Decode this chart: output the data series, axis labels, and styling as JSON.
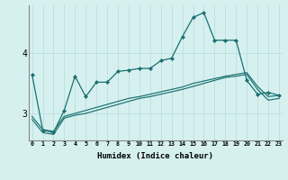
{
  "xlabel": "Humidex (Indice chaleur)",
  "background_color": "#d6f0f0",
  "grid_color": "#c0e0e0",
  "line_color": "#1a7070",
  "x_ticks": [
    0,
    1,
    2,
    3,
    4,
    5,
    6,
    7,
    8,
    9,
    10,
    11,
    12,
    13,
    14,
    15,
    16,
    17,
    18,
    19,
    20,
    21,
    22,
    23
  ],
  "y_ticks": [
    3,
    4
  ],
  "ylim": [
    2.55,
    4.8
  ],
  "xlim": [
    -0.3,
    23.3
  ],
  "line1_y": [
    3.65,
    2.72,
    2.68,
    3.05,
    3.62,
    3.28,
    3.52,
    3.52,
    3.7,
    3.72,
    3.75,
    3.75,
    3.88,
    3.92,
    4.28,
    4.6,
    4.68,
    4.22,
    4.22,
    4.22,
    3.55,
    3.32,
    3.35,
    3.3
  ],
  "line2_y": [
    2.9,
    2.68,
    2.65,
    2.92,
    2.97,
    3.0,
    3.05,
    3.1,
    3.15,
    3.2,
    3.25,
    3.28,
    3.32,
    3.36,
    3.4,
    3.45,
    3.5,
    3.55,
    3.6,
    3.62,
    3.65,
    3.4,
    3.22,
    3.25
  ],
  "line3_y": [
    2.95,
    2.73,
    2.7,
    2.95,
    3.0,
    3.05,
    3.1,
    3.15,
    3.2,
    3.25,
    3.28,
    3.32,
    3.36,
    3.4,
    3.44,
    3.5,
    3.54,
    3.58,
    3.62,
    3.65,
    3.68,
    3.45,
    3.28,
    3.3
  ]
}
